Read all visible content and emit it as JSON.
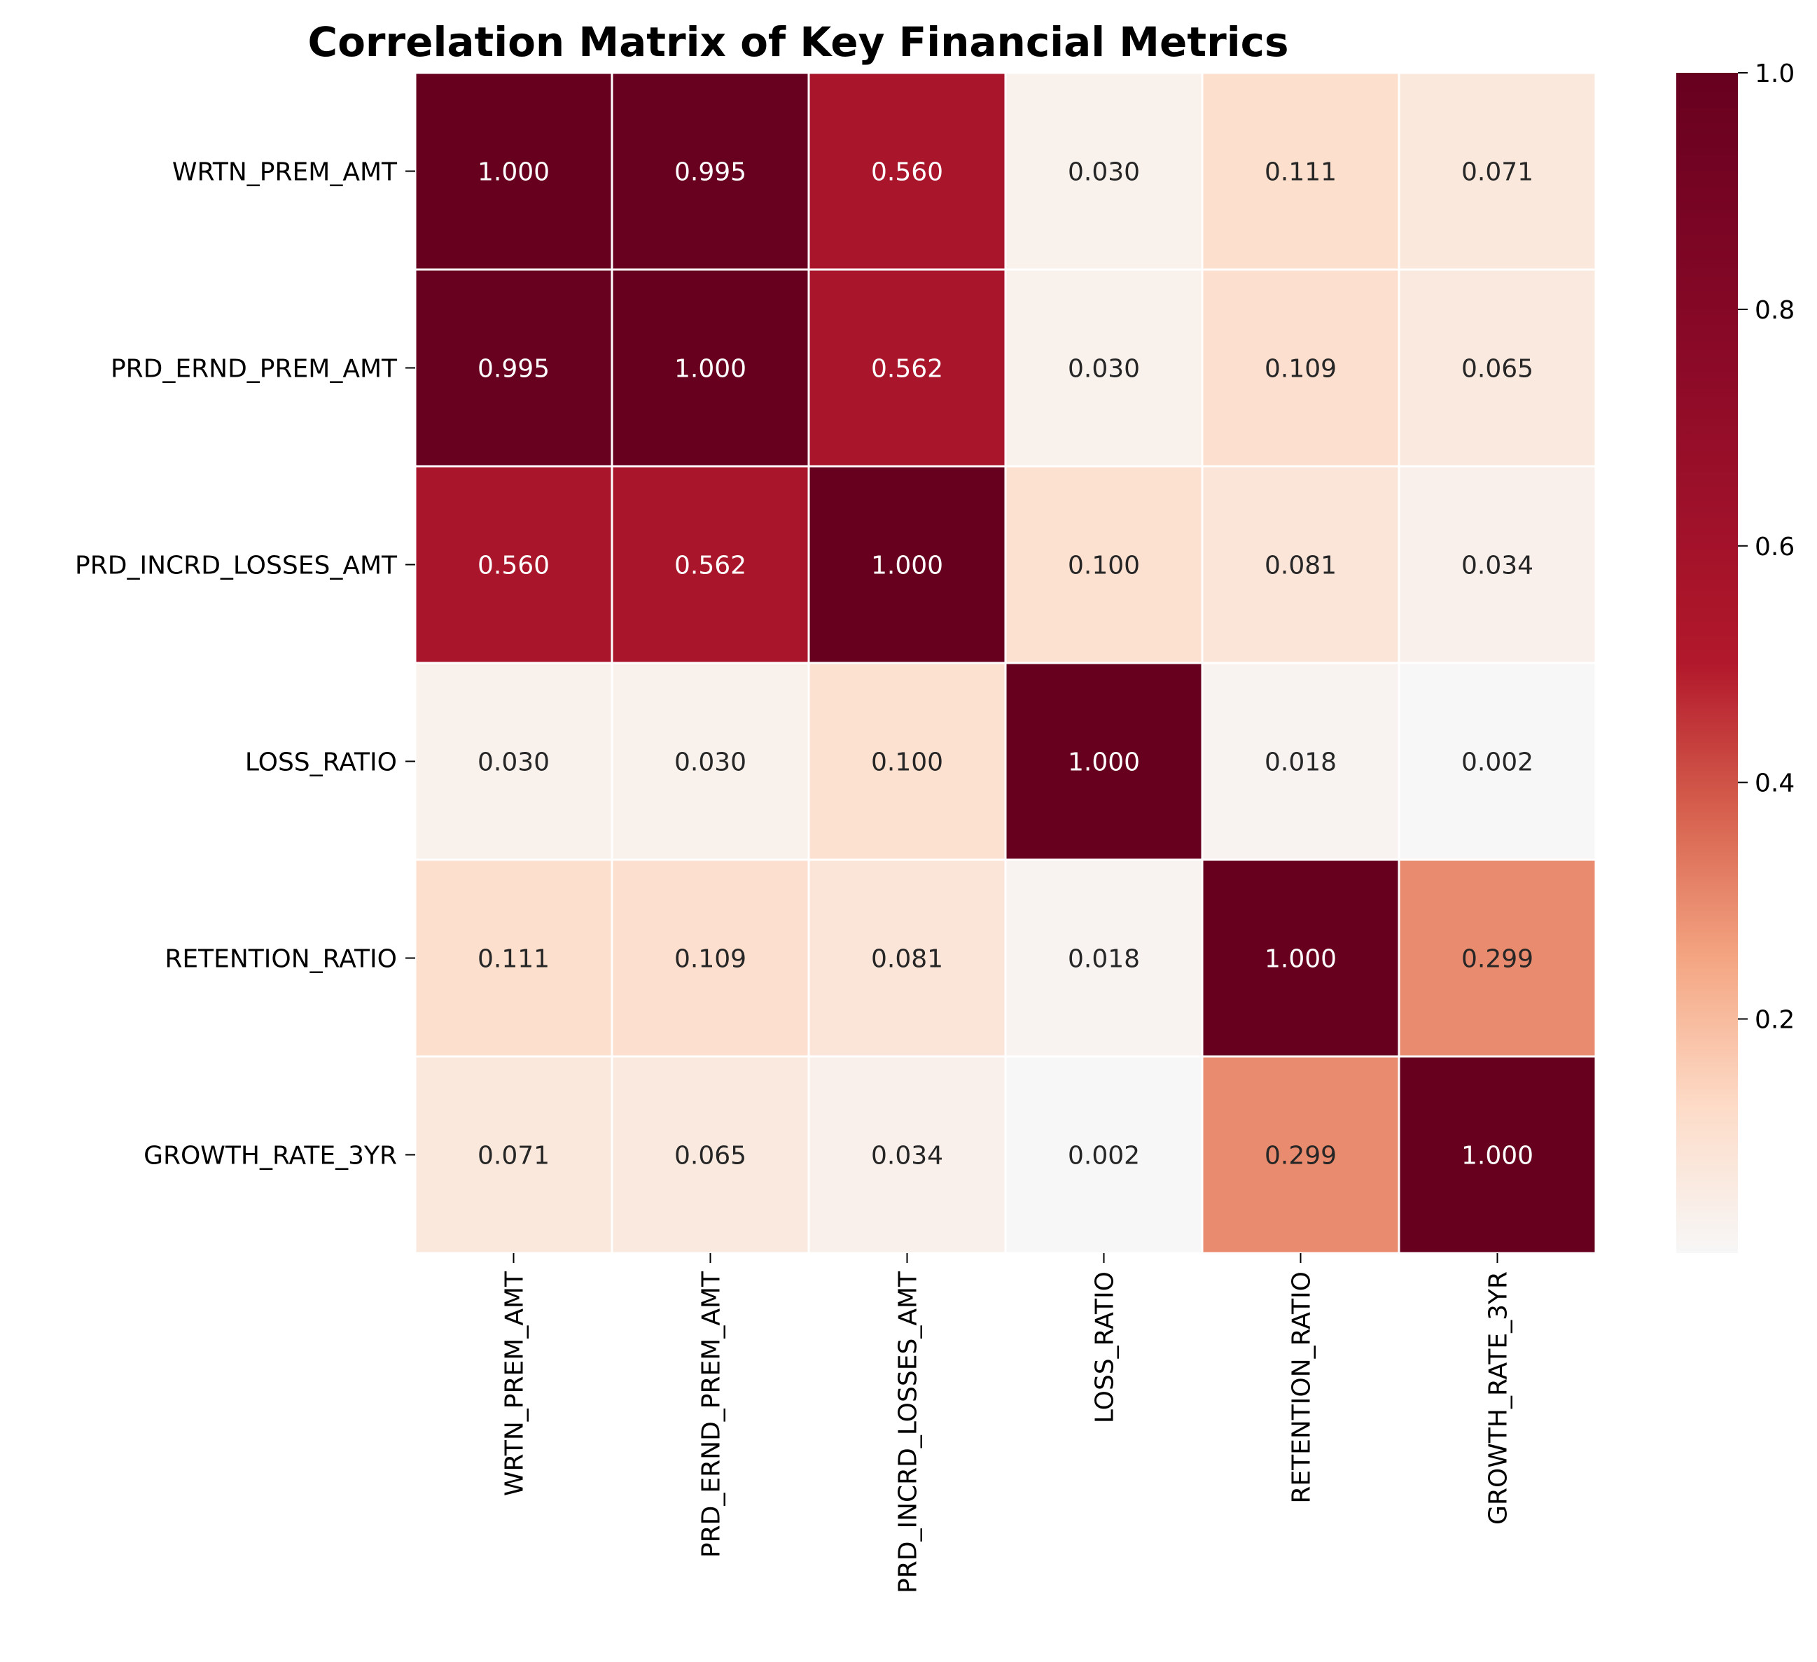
{
  "chart_data": {
    "type": "heatmap",
    "title": "Correlation Matrix of Key Financial Metrics",
    "xlabel": "",
    "ylabel": "",
    "row_labels": [
      "WRTN_PREM_AMT",
      "PRD_ERND_PREM_AMT",
      "PRD_INCRD_LOSSES_AMT",
      "LOSS_RATIO",
      "RETENTION_RATIO",
      "GROWTH_RATE_3YR"
    ],
    "col_labels": [
      "WRTN_PREM_AMT",
      "PRD_ERND_PREM_AMT",
      "PRD_INCRD_LOSSES_AMT",
      "LOSS_RATIO",
      "RETENTION_RATIO",
      "GROWTH_RATE_3YR"
    ],
    "values": [
      [
        1.0,
        0.995,
        0.56,
        0.03,
        0.111,
        0.071
      ],
      [
        0.995,
        1.0,
        0.562,
        0.03,
        0.109,
        0.065
      ],
      [
        0.56,
        0.562,
        1.0,
        0.1,
        0.081,
        0.034
      ],
      [
        0.03,
        0.03,
        0.1,
        1.0,
        0.018,
        0.002
      ],
      [
        0.111,
        0.109,
        0.081,
        0.018,
        1.0,
        0.299
      ],
      [
        0.071,
        0.065,
        0.034,
        0.002,
        0.299,
        1.0
      ]
    ],
    "value_format": "0.000",
    "colorscale": "RdBu_r (positive half)",
    "colors": {
      "low": "#f7f7f7",
      "high": "#67001f",
      "grid_line": "#ffffff"
    },
    "colorbar": {
      "range": [
        0.002,
        1.0
      ],
      "ticks": [
        0.2,
        0.4,
        0.6,
        0.8,
        1.0
      ],
      "tick_labels": [
        "0.2",
        "0.4",
        "0.6",
        "0.8",
        "1.0"
      ],
      "position": "right"
    }
  }
}
